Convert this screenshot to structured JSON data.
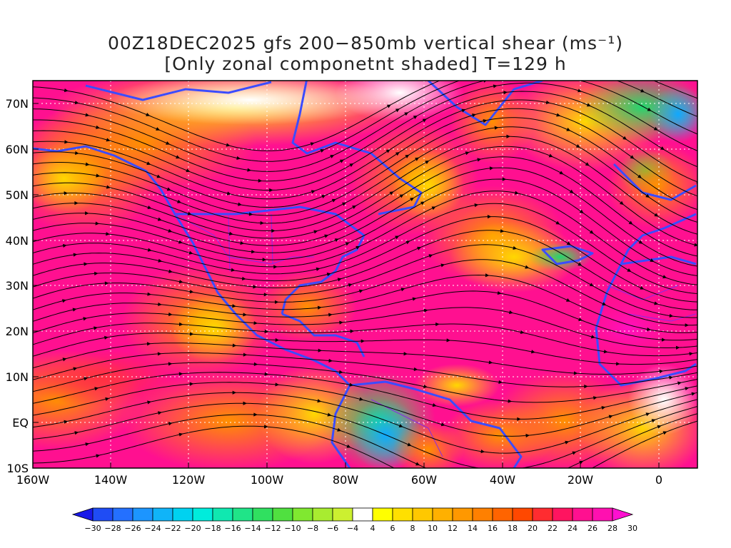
{
  "title": {
    "line1": "00Z18DEC2025 gfs 200−850mb vertical shear (ms⁻¹)",
    "line2": "[Only zonal componetnt shaded] T=129 h"
  },
  "map": {
    "lon_range": [
      -160,
      10
    ],
    "lat_range": [
      -10,
      75
    ],
    "lon_ticks": [
      "160W",
      "140W",
      "120W",
      "100W",
      "80W",
      "60W",
      "40W",
      "20W",
      "0"
    ],
    "lat_ticks": [
      "70N",
      "60N",
      "50N",
      "40N",
      "30N",
      "20N",
      "10N",
      "EQ",
      "10S"
    ],
    "coast_color": "#3b4cff",
    "streamline_color": "#000000",
    "grid_style": "dotted white",
    "field": "zonal component of 200-850mb vertical shear (shaded), shear vector streamlines"
  },
  "colorbar": {
    "labels": [
      "-30",
      "-28",
      "-26",
      "-24",
      "-22",
      "-20",
      "-18",
      "-16",
      "-14",
      "-12",
      "-10",
      "-8",
      "-6",
      "-4",
      "4",
      "6",
      "8",
      "10",
      "12",
      "14",
      "16",
      "18",
      "20",
      "22",
      "24",
      "26",
      "28",
      "30"
    ],
    "colors": [
      "#1818e8",
      "#1f4cf5",
      "#2470ff",
      "#1c95ff",
      "#10b4f8",
      "#00d2f0",
      "#00ecdc",
      "#10e8b0",
      "#20e488",
      "#30e060",
      "#50e040",
      "#80e830",
      "#a8ec30",
      "#ccf030",
      "#ffffff",
      "#ffff00",
      "#ffe000",
      "#ffc800",
      "#ffb000",
      "#ff9800",
      "#ff8000",
      "#ff6400",
      "#ff4800",
      "#ff2c30",
      "#ff1460",
      "#ff1090",
      "#ff10b0",
      "#ff10d0"
    ]
  }
}
